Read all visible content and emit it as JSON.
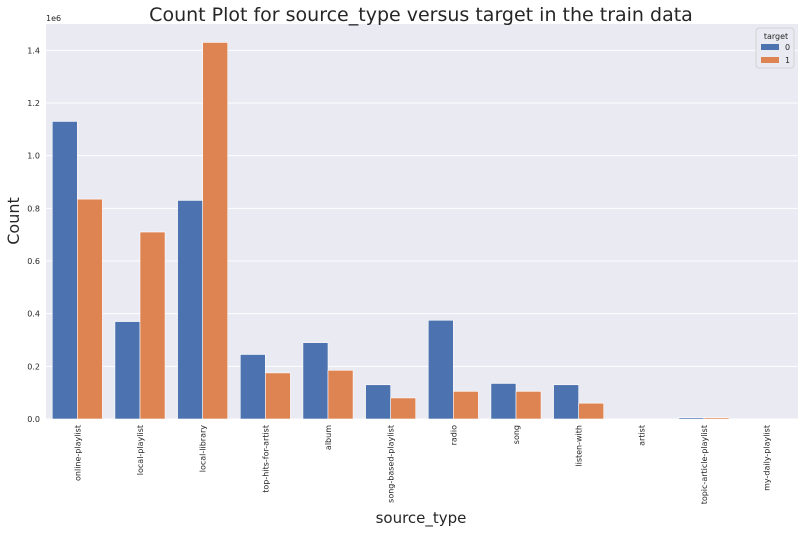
{
  "chart_data": {
    "type": "bar",
    "title": "Count Plot for source_type versus target in the train data",
    "xlabel": "source_type",
    "ylabel": "Count",
    "y_offset_label": "1e6",
    "ylim": [
      0,
      1.5
    ],
    "yticks": [
      0.0,
      0.2,
      0.4,
      0.6,
      0.8,
      1.0,
      1.2,
      1.4
    ],
    "ytick_labels": [
      "0.0",
      "0.2",
      "0.4",
      "0.6",
      "0.8",
      "1.0",
      "1.2",
      "1.4"
    ],
    "grid": true,
    "legend_position": "top-right",
    "legend_title": "target",
    "categories": [
      "online-playlist",
      "local-playlist",
      "local-library",
      "top-hits-for-artist",
      "album",
      "song-based-playlist",
      "radio",
      "song",
      "listen-with",
      "artist",
      "topic-article-playlist",
      "my-daily-playlist"
    ],
    "series": [
      {
        "name": "0",
        "color": "#4c72b0",
        "values": [
          1.13,
          0.37,
          0.83,
          0.245,
          0.29,
          0.13,
          0.375,
          0.135,
          0.13,
          0.001,
          0.005,
          0.001
        ]
      },
      {
        "name": "1",
        "color": "#dd8452",
        "values": [
          0.835,
          0.71,
          1.43,
          0.175,
          0.185,
          0.08,
          0.105,
          0.105,
          0.06,
          0.001,
          0.005,
          0.001
        ]
      }
    ]
  }
}
